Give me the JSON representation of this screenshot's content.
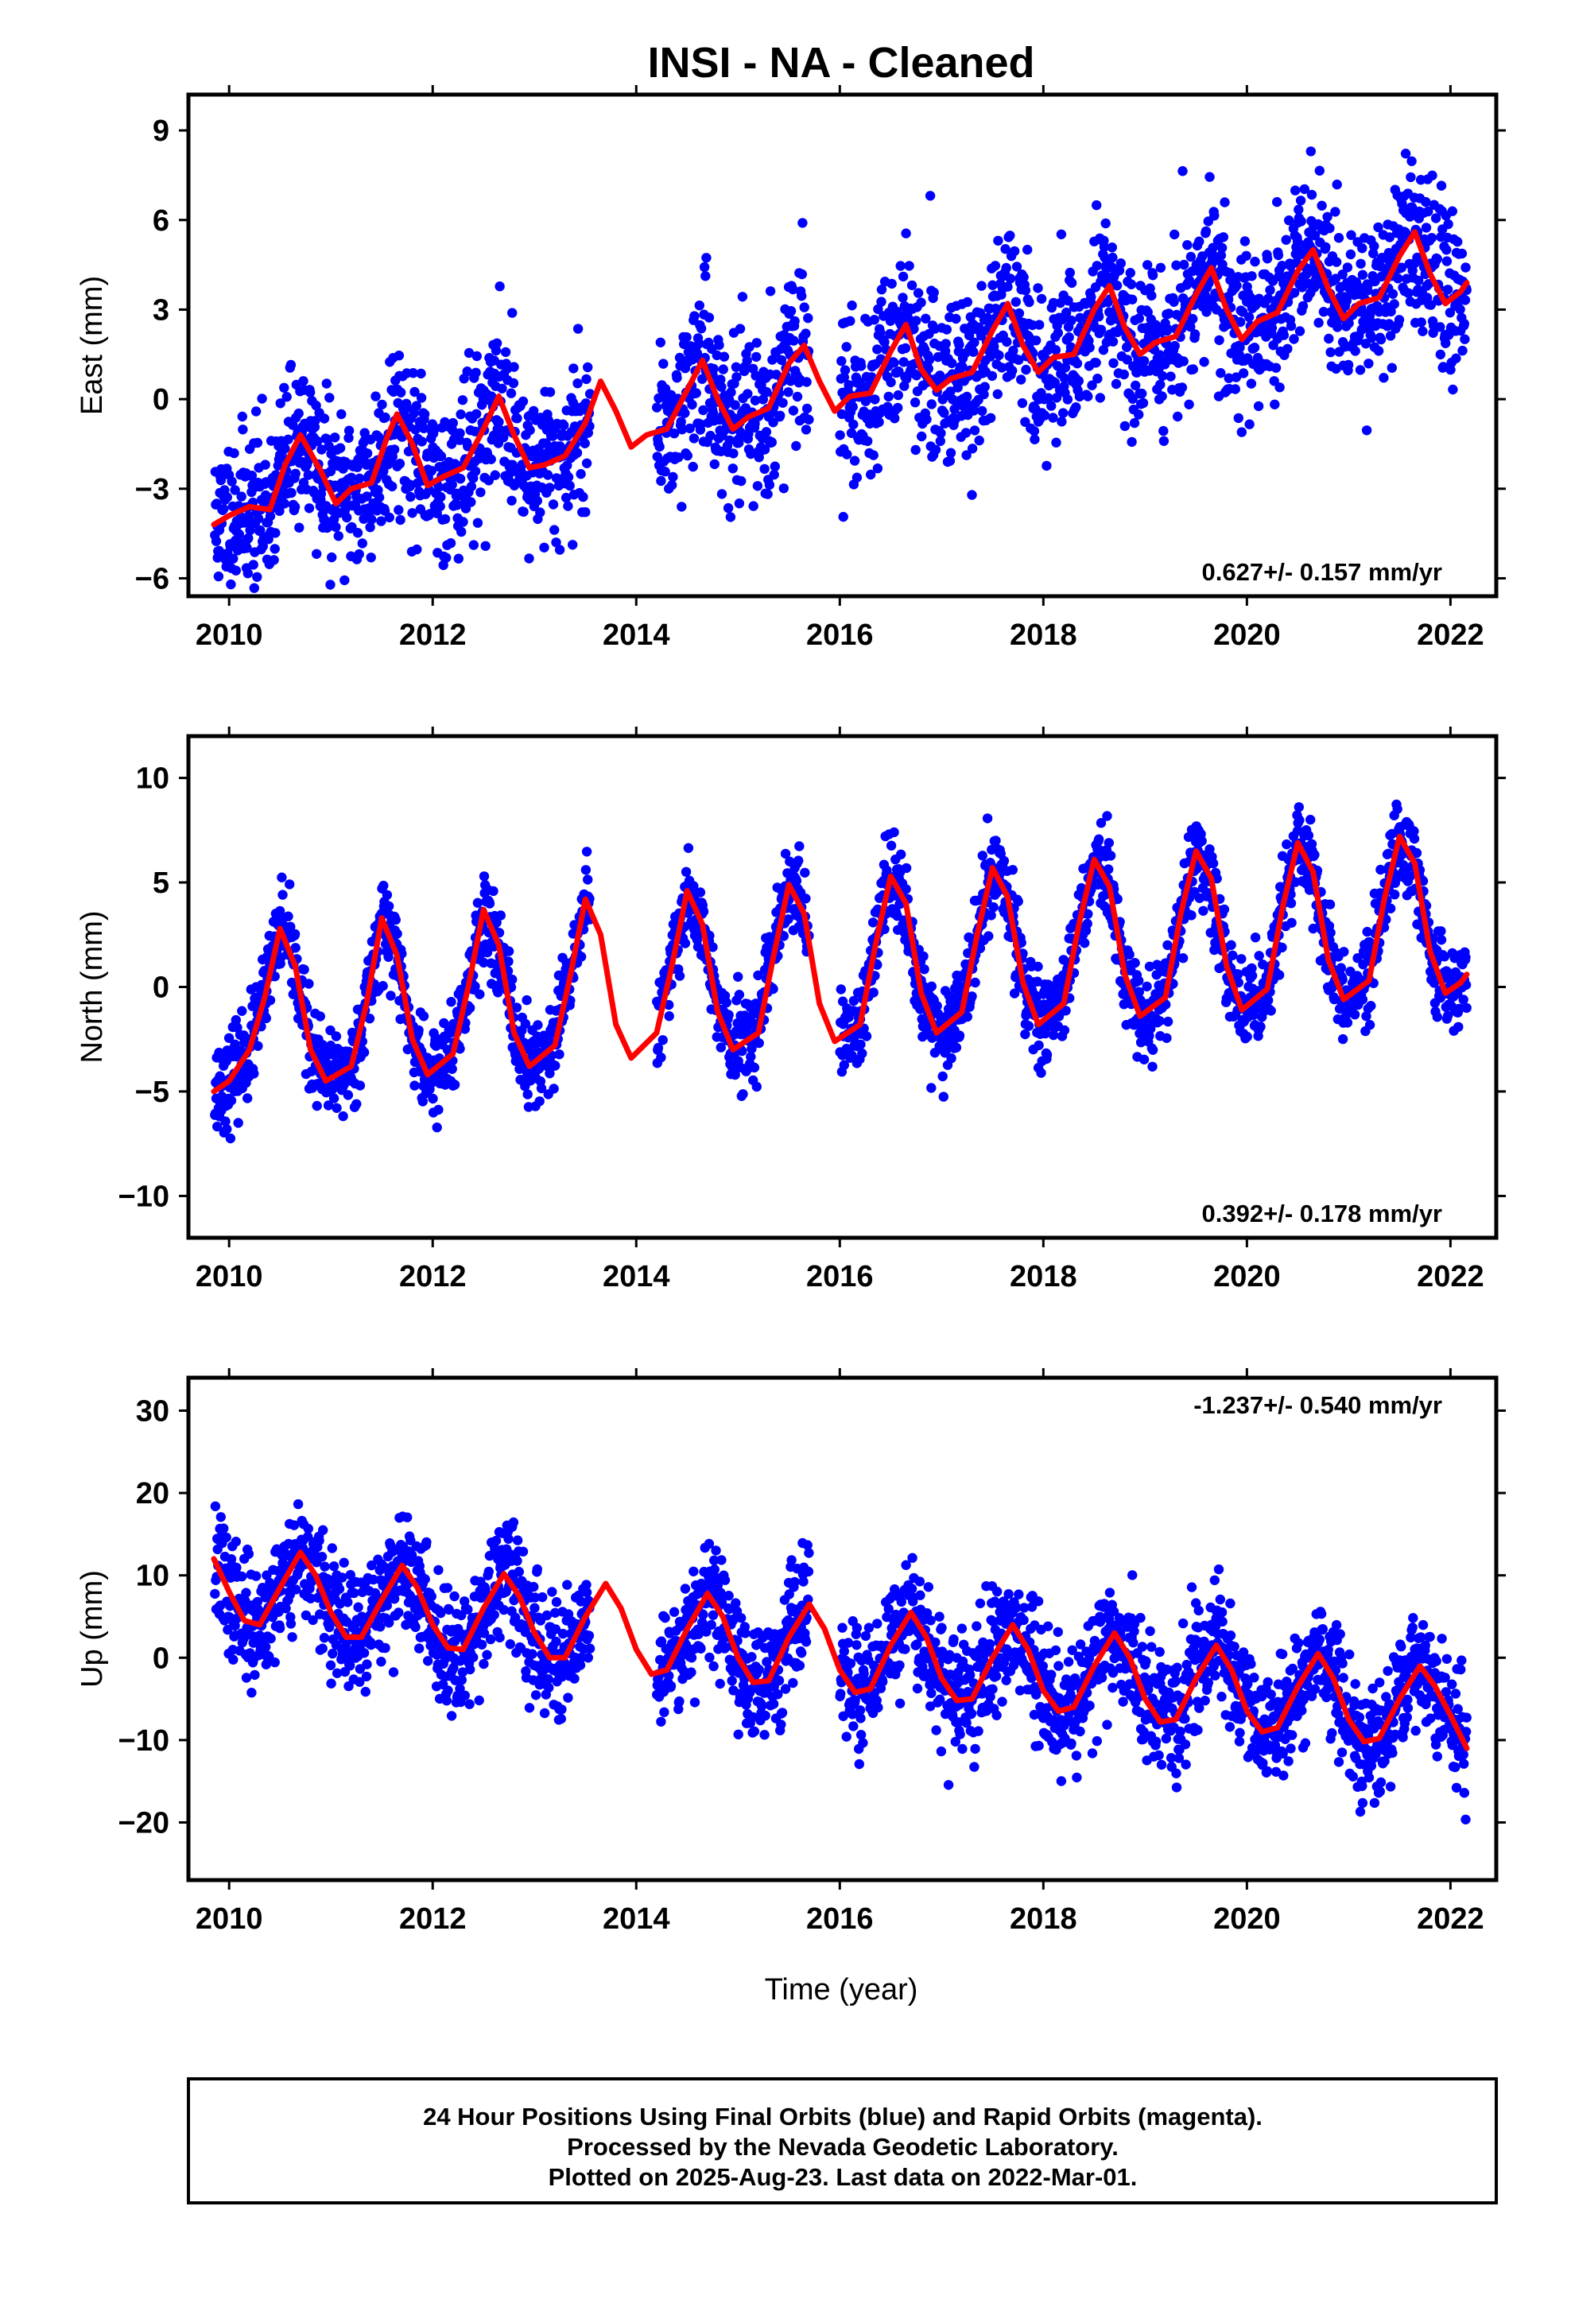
{
  "title": "INSI  - NA - Cleaned",
  "xlabel": "Time (year)",
  "footer": {
    "line1": "24 Hour Positions Using Final Orbits (blue) and Rapid Orbits (magenta).",
    "line2": "Processed by the Nevada Geodetic Laboratory.",
    "line3": "Plotted on 2025-Aug-23. Last data on 2022-Mar-01."
  },
  "colors": {
    "points": "#0000ff",
    "model": "#ff0000",
    "frame": "#000000"
  },
  "chart_data": [
    {
      "type": "scatter",
      "component": "east",
      "ylabel": "East (mm)",
      "rate_text": "0.627+/- 0.157 mm/yr",
      "xlim": [
        2009.6,
        2022.45
      ],
      "ylim": [
        -6.6,
        10.2
      ],
      "x_ticks": [
        2010,
        2012,
        2014,
        2016,
        2018,
        2020,
        2022
      ],
      "y_ticks": [
        -6,
        -3,
        0,
        3,
        6,
        9
      ],
      "series": [
        {
          "role": "model",
          "x": [
            2009.85,
            2010.0,
            2010.2,
            2010.4,
            2010.55,
            2010.7,
            2010.9,
            2011.05,
            2011.2,
            2011.4,
            2011.55,
            2011.65,
            2011.8,
            2011.95,
            2012.1,
            2012.3,
            2012.5,
            2012.65,
            2012.8,
            2012.95,
            2013.1,
            2013.3,
            2013.5,
            2013.65,
            2013.8,
            2013.95,
            2014.1,
            2014.3,
            2014.5,
            2014.65,
            2014.8,
            2014.95,
            2015.1,
            2015.3,
            2015.5,
            2015.65,
            2015.8,
            2015.95,
            2016.1,
            2016.3,
            2016.5,
            2016.65,
            2016.8,
            2016.95,
            2017.1,
            2017.3,
            2017.5,
            2017.65,
            2017.8,
            2017.95,
            2018.1,
            2018.3,
            2018.5,
            2018.65,
            2018.8,
            2018.95,
            2019.1,
            2019.3,
            2019.5,
            2019.65,
            2019.8,
            2019.95,
            2020.1,
            2020.3,
            2020.5,
            2020.65,
            2020.8,
            2020.95,
            2021.1,
            2021.3,
            2021.5,
            2021.65,
            2021.8,
            2021.95,
            2022.1,
            2022.16
          ],
          "y": [
            -4.2,
            -3.9,
            -3.6,
            -3.7,
            -2.2,
            -1.2,
            -2.4,
            -3.5,
            -3.0,
            -2.8,
            -1.3,
            -0.5,
            -1.5,
            -2.9,
            -2.6,
            -2.3,
            -1.0,
            0.1,
            -1.2,
            -2.3,
            -2.2,
            -1.9,
            -0.8,
            0.6,
            -0.4,
            -1.6,
            -1.2,
            -1.0,
            0.3,
            1.3,
            0.0,
            -1.0,
            -0.6,
            -0.3,
            1.2,
            1.8,
            0.6,
            -0.4,
            0.1,
            0.2,
            1.6,
            2.5,
            1.0,
            0.3,
            0.7,
            0.9,
            2.3,
            3.2,
            1.8,
            0.9,
            1.4,
            1.5,
            3.0,
            3.8,
            2.4,
            1.5,
            1.9,
            2.1,
            3.5,
            4.4,
            3.0,
            2.0,
            2.6,
            2.9,
            4.3,
            5.0,
            3.7,
            2.7,
            3.2,
            3.4,
            4.8,
            5.6,
            4.2,
            3.2,
            3.6,
            3.9
          ]
        }
      ]
    },
    {
      "type": "scatter",
      "component": "north",
      "ylabel": "North (mm)",
      "rate_text": "0.392+/- 0.178 mm/yr",
      "xlim": [
        2009.6,
        2022.45
      ],
      "ylim": [
        -12,
        12
      ],
      "x_ticks": [
        2010,
        2012,
        2014,
        2016,
        2018,
        2020,
        2022
      ],
      "y_ticks": [
        -10,
        -5,
        0,
        5,
        10
      ],
      "series": [
        {
          "role": "model",
          "x": [
            2009.85,
            2010.0,
            2010.2,
            2010.35,
            2010.5,
            2010.65,
            2010.8,
            2010.95,
            2011.2,
            2011.35,
            2011.5,
            2011.65,
            2011.8,
            2011.95,
            2012.2,
            2012.35,
            2012.5,
            2012.65,
            2012.8,
            2012.95,
            2013.2,
            2013.35,
            2013.5,
            2013.65,
            2013.8,
            2013.95,
            2014.2,
            2014.35,
            2014.5,
            2014.65,
            2014.8,
            2014.95,
            2015.2,
            2015.35,
            2015.5,
            2015.65,
            2015.8,
            2015.95,
            2016.2,
            2016.35,
            2016.5,
            2016.65,
            2016.8,
            2016.95,
            2017.2,
            2017.35,
            2017.5,
            2017.65,
            2017.8,
            2017.95,
            2018.2,
            2018.35,
            2018.5,
            2018.65,
            2018.8,
            2018.95,
            2019.2,
            2019.35,
            2019.5,
            2019.65,
            2019.8,
            2019.95,
            2020.2,
            2020.35,
            2020.5,
            2020.65,
            2020.8,
            2020.95,
            2021.2,
            2021.35,
            2021.5,
            2021.65,
            2021.8,
            2021.95,
            2022.1,
            2022.16
          ],
          "y": [
            -5.0,
            -4.5,
            -3.0,
            -0.5,
            2.8,
            1.0,
            -3.0,
            -4.5,
            -3.8,
            -0.8,
            3.3,
            1.5,
            -2.5,
            -4.2,
            -3.2,
            0.0,
            3.7,
            2.0,
            -2.2,
            -3.8,
            -2.8,
            0.5,
            4.2,
            2.5,
            -1.8,
            -3.4,
            -2.2,
            1.0,
            4.6,
            3.0,
            -1.2,
            -3.0,
            -2.2,
            1.5,
            4.9,
            3.5,
            -0.8,
            -2.6,
            -1.8,
            2.0,
            5.3,
            4.0,
            -0.3,
            -2.2,
            -1.2,
            2.5,
            5.7,
            4.3,
            0.2,
            -1.8,
            -0.8,
            3.0,
            6.1,
            4.8,
            0.6,
            -1.4,
            -0.5,
            3.5,
            6.5,
            5.2,
            1.0,
            -1.1,
            -0.1,
            3.8,
            6.9,
            5.5,
            1.3,
            -0.6,
            0.3,
            4.2,
            7.2,
            5.9,
            1.7,
            -0.3,
            0.2,
            0.6
          ]
        }
      ]
    },
    {
      "type": "scatter",
      "component": "up",
      "ylabel": "Up (mm)",
      "rate_text": "-1.237+/- 0.540 mm/yr",
      "xlim": [
        2009.6,
        2022.45
      ],
      "ylim": [
        -27,
        34
      ],
      "x_ticks": [
        2010,
        2012,
        2014,
        2016,
        2018,
        2020,
        2022
      ],
      "y_ticks": [
        -20,
        -10,
        0,
        10,
        20,
        30
      ],
      "series": [
        {
          "role": "model",
          "x": [
            2009.85,
            2010.0,
            2010.15,
            2010.3,
            2010.5,
            2010.7,
            2010.85,
            2011.0,
            2011.15,
            2011.3,
            2011.5,
            2011.7,
            2011.85,
            2012.0,
            2012.15,
            2012.3,
            2012.5,
            2012.7,
            2012.85,
            2013.0,
            2013.15,
            2013.3,
            2013.5,
            2013.7,
            2013.85,
            2014.0,
            2014.15,
            2014.3,
            2014.5,
            2014.7,
            2014.85,
            2015.0,
            2015.15,
            2015.3,
            2015.5,
            2015.7,
            2015.85,
            2016.0,
            2016.15,
            2016.3,
            2016.5,
            2016.7,
            2016.85,
            2017.0,
            2017.15,
            2017.3,
            2017.5,
            2017.7,
            2017.85,
            2018.0,
            2018.15,
            2018.3,
            2018.5,
            2018.7,
            2018.85,
            2019.0,
            2019.15,
            2019.3,
            2019.5,
            2019.7,
            2019.85,
            2020.0,
            2020.15,
            2020.3,
            2020.5,
            2020.7,
            2020.85,
            2021.0,
            2021.15,
            2021.3,
            2021.5,
            2021.7,
            2021.85,
            2022.0,
            2022.16
          ],
          "y": [
            12.0,
            8.0,
            4.5,
            4.0,
            8.5,
            12.8,
            10.0,
            5.5,
            2.5,
            2.5,
            7.0,
            11.2,
            8.5,
            4.0,
            1.2,
            1.0,
            6.0,
            10.2,
            7.5,
            3.0,
            0.0,
            0.0,
            5.0,
            9.0,
            6.0,
            1.0,
            -2.0,
            -1.5,
            3.5,
            7.8,
            5.0,
            0.0,
            -3.0,
            -2.8,
            2.5,
            6.5,
            3.5,
            -1.5,
            -4.2,
            -3.8,
            1.5,
            5.5,
            2.5,
            -2.5,
            -5.2,
            -5.0,
            0.0,
            4.0,
            1.0,
            -4.0,
            -6.5,
            -6.0,
            -1.0,
            3.0,
            0.0,
            -5.0,
            -7.8,
            -7.5,
            -2.5,
            1.5,
            -1.5,
            -6.5,
            -9.0,
            -8.5,
            -3.5,
            0.5,
            -2.5,
            -7.5,
            -10.2,
            -9.8,
            -5.0,
            -1.0,
            -3.5,
            -7.0,
            -11.0
          ]
        }
      ]
    }
  ]
}
